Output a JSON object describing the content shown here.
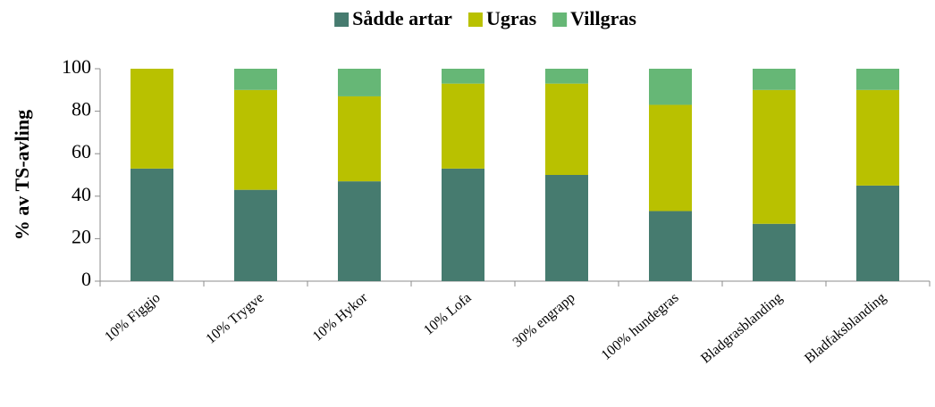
{
  "chart_data": {
    "type": "stacked_bar",
    "y_label": "% av TS-avling",
    "categories": [
      "10% Figgjo",
      "10% Trygve",
      "10% Hykor",
      "10% Lofa",
      "30% engrapp",
      "100% hundegras",
      "Bladgrasblanding",
      "Bladfaksblanding"
    ],
    "series": [
      {
        "name": "Sådde artar",
        "color": "#467b6f",
        "values": [
          53,
          43,
          47,
          53,
          50,
          33,
          27,
          45
        ]
      },
      {
        "name": "Ugras",
        "color": "#b9c100",
        "values": [
          47,
          47,
          40,
          40,
          43,
          50,
          63,
          45
        ]
      },
      {
        "name": "Villgras",
        "color": "#66b776",
        "values": [
          0,
          10,
          13,
          7,
          7,
          17,
          10,
          10
        ]
      }
    ],
    "ylim": [
      0,
      100
    ],
    "yticks": [
      0,
      20,
      40,
      60,
      80,
      100
    ],
    "legend": "top"
  }
}
